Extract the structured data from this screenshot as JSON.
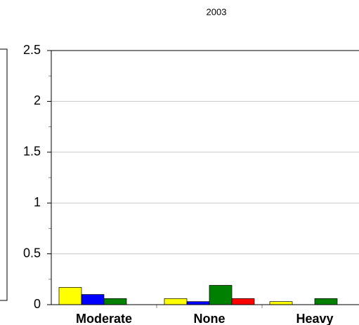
{
  "chart_data": {
    "type": "bar",
    "title": "2003",
    "categories": [
      "Moderate",
      "None",
      "Heavy"
    ],
    "series": [
      {
        "color": "#ffff00",
        "values": [
          0.17,
          0.06,
          0.03
        ]
      },
      {
        "color": "#0000ff",
        "values": [
          0.1,
          0.03,
          0
        ]
      },
      {
        "color": "#008000",
        "values": [
          0.06,
          0.19,
          0.06
        ]
      },
      {
        "color": "#ff0000",
        "values": [
          0,
          0.06,
          0
        ]
      }
    ],
    "ylim": [
      0,
      2.5
    ],
    "yticks": [
      0,
      0.5,
      1,
      1.5,
      2,
      2.5
    ],
    "grid": true
  }
}
